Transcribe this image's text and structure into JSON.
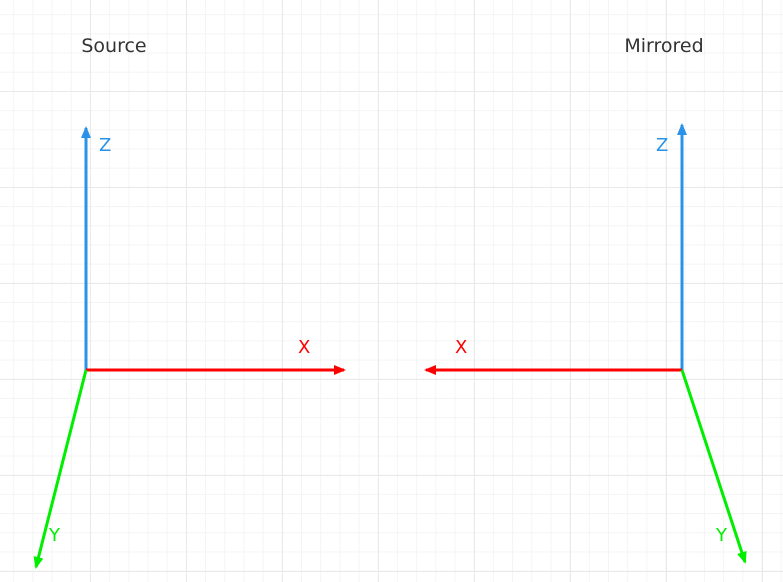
{
  "titles": {
    "source": "Source",
    "mirrored": "Mirrored"
  },
  "colors": {
    "x_axis": "#ff0000",
    "y_axis": "#00ee00",
    "z_axis": "#2a93e8",
    "title": "#333333",
    "grid": "#e9e9e9"
  },
  "source": {
    "z_label": "Z",
    "x_label": "X",
    "y_label": "Y"
  },
  "mirrored": {
    "z_label": "Z",
    "x_label": "X",
    "y_label": "Y"
  }
}
